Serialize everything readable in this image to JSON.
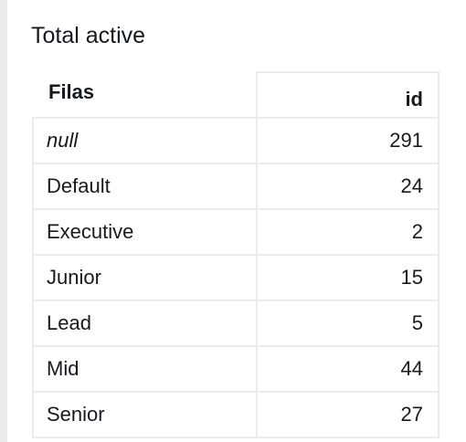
{
  "widget": {
    "title": "Total active"
  },
  "table": {
    "columns": [
      "Filas",
      "id"
    ],
    "rows": [
      {
        "label": "null",
        "value": "291"
      },
      {
        "label": "Default",
        "value": "24"
      },
      {
        "label": "Executive",
        "value": "2"
      },
      {
        "label": "Junior",
        "value": "15"
      },
      {
        "label": "Lead",
        "value": "5"
      },
      {
        "label": "Mid",
        "value": "44"
      },
      {
        "label": "Senior",
        "value": "27"
      }
    ]
  }
}
